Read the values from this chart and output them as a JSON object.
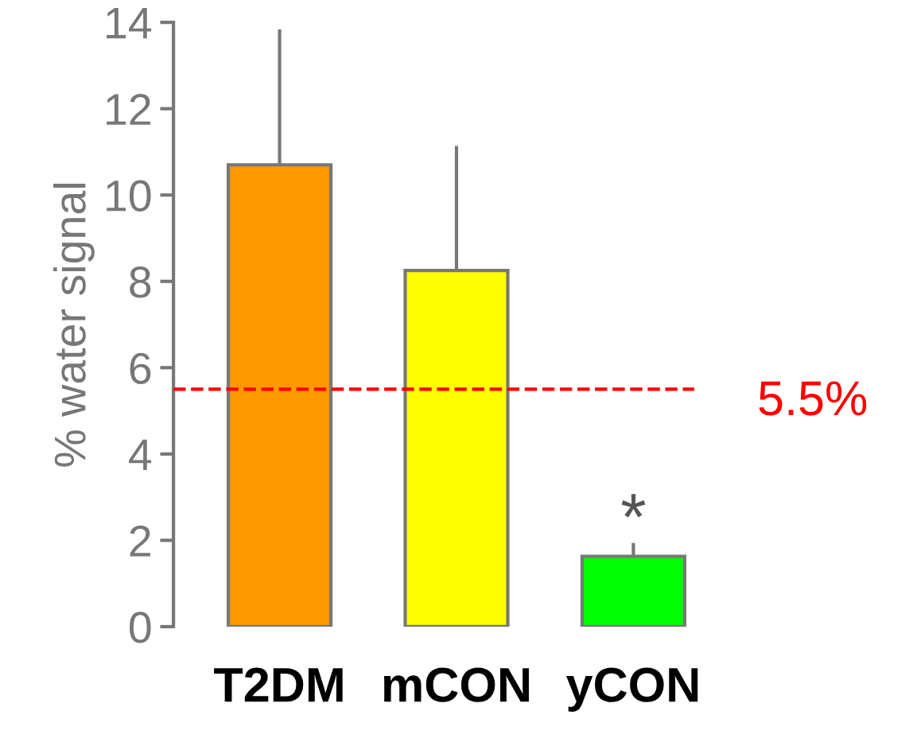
{
  "chart_data": {
    "type": "bar",
    "ylabel": "% water signal",
    "categories": [
      "T2DM",
      "mCON",
      "yCON"
    ],
    "values": [
      10.7,
      8.25,
      1.63
    ],
    "colors": [
      "#ff9900",
      "#ffff00",
      "#00ff00"
    ],
    "errors": [
      [
        10.7,
        13.8
      ],
      [
        8.25,
        11.1
      ],
      [
        1.63,
        1.9
      ]
    ],
    "ylim": [
      0,
      14
    ],
    "yticks": [
      0,
      2,
      4,
      6,
      8,
      10,
      12,
      14
    ],
    "grid": false,
    "ref_lines": [
      {
        "axis": "y",
        "value": 5.5,
        "label": "5.5%",
        "color": "#ff0000",
        "line_style": "dashed"
      }
    ],
    "annotations": [
      {
        "text": "*",
        "x": "yCON",
        "y": 1.9
      }
    ]
  }
}
